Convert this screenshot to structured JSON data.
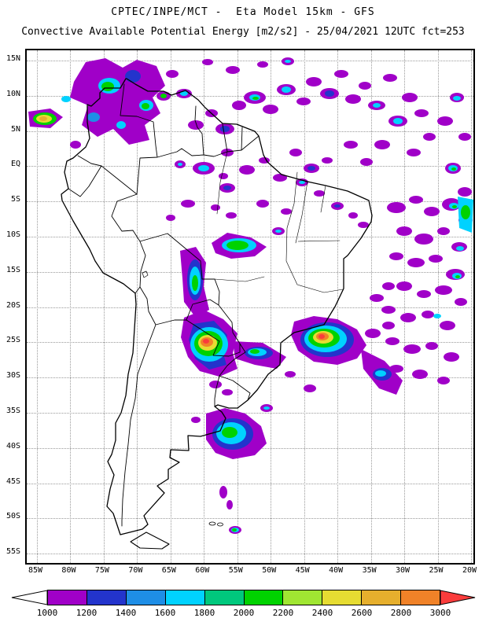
{
  "header": {
    "line1": "CPTEC/INPE/MCT -  Eta Model 15km - GFS",
    "line2": "Convective Available Potential Energy [m2/s2] - 25/04/2021 12UTC fct=253"
  },
  "map": {
    "lat_ticks": [
      "15N",
      "10N",
      "5N",
      "EQ",
      "5S",
      "10S",
      "15S",
      "20S",
      "25S",
      "30S",
      "35S",
      "40S",
      "45S",
      "50S",
      "55S"
    ],
    "lon_ticks": [
      "85W",
      "80W",
      "75W",
      "70W",
      "65W",
      "60W",
      "55W",
      "50W",
      "45W",
      "40W",
      "35W",
      "30W",
      "25W",
      "20W"
    ]
  },
  "colorbar": {
    "labels": [
      "1000",
      "1200",
      "1400",
      "1600",
      "1800",
      "2000",
      "2200",
      "2400",
      "2600",
      "2800",
      "3000"
    ],
    "segment_colors": [
      "#a000c8",
      "#2334cc",
      "#1e8ee6",
      "#00d2ff",
      "#00c87d",
      "#00d200",
      "#a0e632",
      "#e6dc32",
      "#e6af2d",
      "#f08228"
    ],
    "below_min_color": "#ffffff",
    "above_max_color": "#fa3c3c",
    "units": "m2/s2"
  }
}
